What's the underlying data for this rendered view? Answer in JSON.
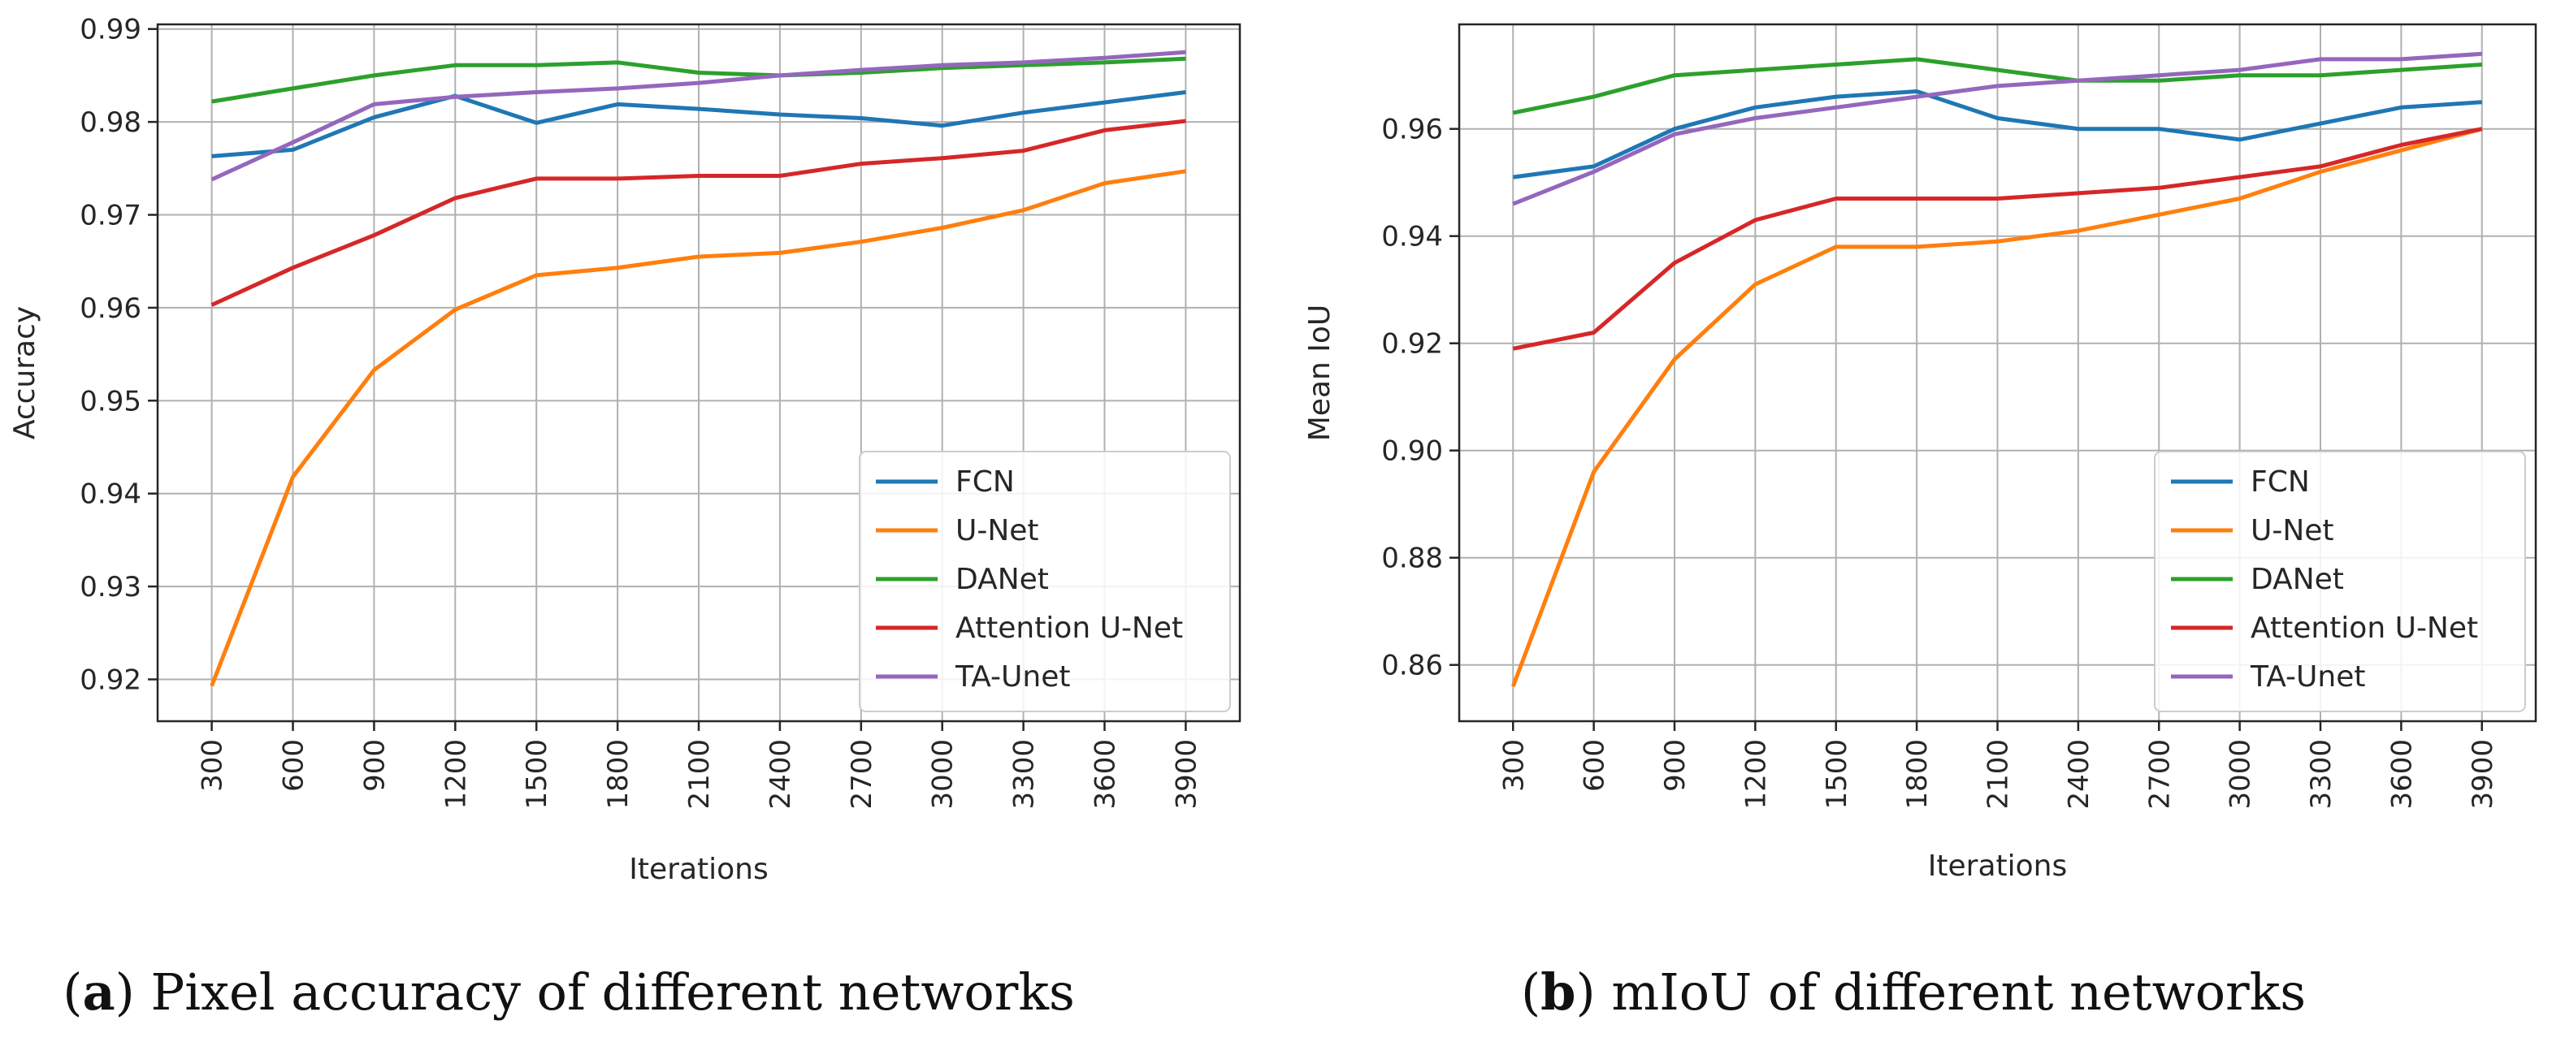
{
  "chart_data": [
    {
      "type": "line",
      "panel": "a",
      "title": "",
      "xlabel": "Iterations",
      "ylabel": "Accuracy",
      "categories": [
        "300",
        "600",
        "900",
        "1200",
        "1500",
        "1800",
        "2100",
        "2400",
        "2700",
        "3000",
        "3300",
        "3600",
        "3900"
      ],
      "ylim": [
        0.9155,
        0.9905
      ],
      "yticks": [
        0.92,
        0.93,
        0.94,
        0.95,
        0.96,
        0.97,
        0.98,
        0.99
      ],
      "grid": true,
      "legend_position": "lower-right",
      "series": [
        {
          "name": "FCN",
          "color": "#1f77b4",
          "values": [
            0.9763,
            0.977,
            0.9805,
            0.9828,
            0.9799,
            0.9819,
            0.9814,
            0.9808,
            0.9804,
            0.9796,
            0.981,
            0.9821,
            0.9832
          ]
        },
        {
          "name": "U-Net",
          "color": "#ff7f0e",
          "values": [
            0.9193,
            0.9418,
            0.9533,
            0.9598,
            0.9635,
            0.9643,
            0.9655,
            0.9659,
            0.9671,
            0.9686,
            0.9705,
            0.9734,
            0.9747
          ]
        },
        {
          "name": "DANet",
          "color": "#2ca02c",
          "values": [
            0.9822,
            0.9836,
            0.985,
            0.9861,
            0.9861,
            0.9864,
            0.9853,
            0.985,
            0.9853,
            0.9858,
            0.9861,
            0.9864,
            0.9868
          ]
        },
        {
          "name": "Attention U-Net",
          "color": "#d62728",
          "values": [
            0.9603,
            0.9643,
            0.9678,
            0.9718,
            0.9739,
            0.9739,
            0.9742,
            0.9742,
            0.9755,
            0.9761,
            0.9769,
            0.9791,
            0.9801
          ]
        },
        {
          "name": "TA-Unet",
          "color": "#9467bd",
          "values": [
            0.9738,
            0.9778,
            0.9819,
            0.9827,
            0.9832,
            0.9836,
            0.9842,
            0.985,
            0.9856,
            0.9861,
            0.9864,
            0.9869,
            0.9875
          ]
        }
      ]
    },
    {
      "type": "line",
      "panel": "b",
      "title": "",
      "xlabel": "Iterations",
      "ylabel": "Mean IoU",
      "categories": [
        "300",
        "600",
        "900",
        "1200",
        "1500",
        "1800",
        "2100",
        "2400",
        "2700",
        "3000",
        "3300",
        "3600",
        "3900"
      ],
      "ylim": [
        0.8495,
        0.9795
      ],
      "yticks": [
        0.86,
        0.88,
        0.9,
        0.92,
        0.94,
        0.96
      ],
      "grid": true,
      "legend_position": "lower-right",
      "series": [
        {
          "name": "FCN",
          "color": "#1f77b4",
          "values": [
            0.951,
            0.953,
            0.96,
            0.964,
            0.966,
            0.967,
            0.962,
            0.96,
            0.96,
            0.958,
            0.961,
            0.964,
            0.965
          ]
        },
        {
          "name": "U-Net",
          "color": "#ff7f0e",
          "values": [
            0.856,
            0.896,
            0.917,
            0.931,
            0.938,
            0.938,
            0.939,
            0.941,
            0.944,
            0.947,
            0.952,
            0.956,
            0.96
          ]
        },
        {
          "name": "DANet",
          "color": "#2ca02c",
          "values": [
            0.963,
            0.966,
            0.97,
            0.971,
            0.972,
            0.973,
            0.971,
            0.969,
            0.969,
            0.97,
            0.97,
            0.971,
            0.972
          ]
        },
        {
          "name": "Attention U-Net",
          "color": "#d62728",
          "values": [
            0.919,
            0.922,
            0.935,
            0.943,
            0.947,
            0.947,
            0.947,
            0.948,
            0.949,
            0.951,
            0.953,
            0.957,
            0.96
          ]
        },
        {
          "name": "TA-Unet",
          "color": "#9467bd",
          "values": [
            0.946,
            0.952,
            0.959,
            0.962,
            0.964,
            0.966,
            0.968,
            0.969,
            0.97,
            0.971,
            0.973,
            0.973,
            0.974
          ]
        }
      ]
    }
  ],
  "captions": {
    "a": {
      "letter": "a",
      "text": " Pixel accuracy of different networks"
    },
    "b": {
      "letter": "b",
      "text": " mIoU of different networks"
    }
  }
}
